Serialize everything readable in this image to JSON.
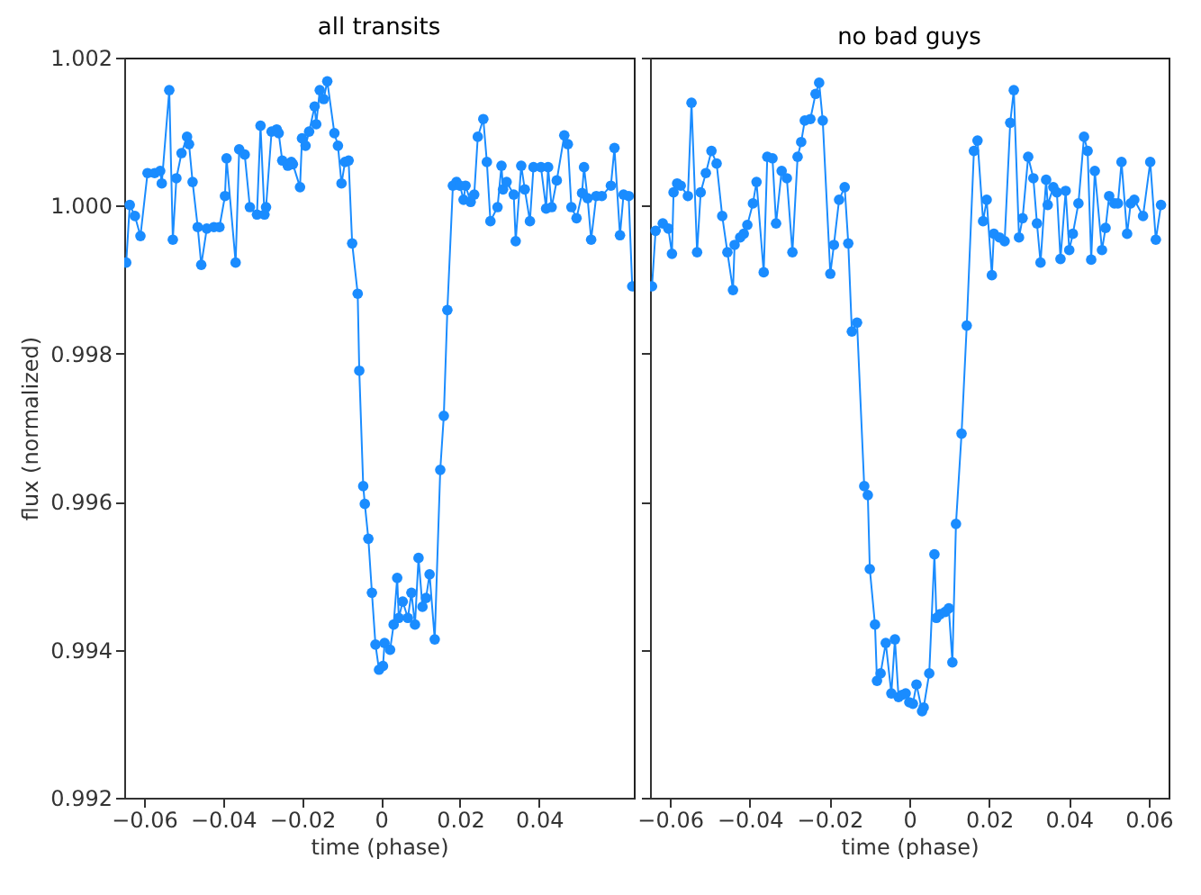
{
  "chart_data": [
    {
      "type": "line",
      "title": "all transits",
      "xlabel": "time (phase)",
      "ylabel": "flux (normalized)",
      "marker": "circle",
      "line_style": "solid",
      "grid": false,
      "xlim": [
        -0.065,
        0.064
      ],
      "xticks": [
        -0.06,
        -0.04,
        -0.02,
        0,
        0.02,
        0.04
      ],
      "ylim": [
        0.992,
        1.002
      ],
      "yticks": [
        0.992,
        0.994,
        0.996,
        0.998,
        {
          "value": 1,
          "label": "1.000"
        },
        1.002
      ],
      "series": [
        {
          "color": "#1a8cff",
          "x": [
            -0.0645,
            -0.0636,
            -0.0623,
            -0.0609,
            -0.0591,
            -0.0573,
            -0.0559,
            -0.0555,
            -0.0536,
            -0.0527,
            -0.0518,
            -0.0505,
            -0.0491,
            -0.0486,
            -0.0477,
            -0.0464,
            -0.0455,
            -0.0441,
            -0.0423,
            -0.0409,
            -0.0395,
            -0.0391,
            -0.0368,
            -0.0359,
            -0.0345,
            -0.0332,
            -0.0314,
            -0.0305,
            -0.0295,
            -0.0291,
            -0.0277,
            -0.0264,
            -0.0259,
            -0.025,
            -0.0236,
            -0.0227,
            -0.0223,
            -0.0205,
            -0.02,
            -0.0191,
            -0.0182,
            -0.0168,
            -0.0164,
            -0.0155,
            -0.0145,
            -0.0136,
            -0.0118,
            -0.0109,
            -0.01,
            -0.0091,
            -0.0082,
            -0.0073,
            -0.0059,
            -0.0055,
            -0.0045,
            -0.0041,
            -0.0032,
            -0.0023,
            -0.0014,
            -0.0005,
            0.0005,
            0.0009,
            0.0023,
            0.0032,
            0.0041,
            0.0045,
            0.0055,
            0.0068,
            0.0077,
            0.0086,
            0.0095,
            0.0105,
            0.0114,
            0.0123,
            0.0136,
            0.015,
            0.0159,
            0.0168,
            0.0182,
            0.0191,
            0.02,
            0.0209,
            0.0214,
            0.0227,
            0.0236,
            0.0245,
            0.0259,
            0.0268,
            0.0277,
            0.0295,
            0.0305,
            0.0309,
            0.0318,
            0.0336,
            0.0341,
            0.0355,
            0.0364,
            0.0377,
            0.0386,
            0.0405,
            0.0418,
            0.0423,
            0.0432,
            0.0445,
            0.0464,
            0.0473,
            0.0482,
            0.0495,
            0.0509,
            0.0514,
            0.0523,
            0.0532,
            0.0545,
            0.0559,
            0.0582,
            0.0591,
            0.0605,
            0.0614,
            0.0627,
            0.0636
          ],
          "values": [
            0.99923,
            1.00001,
            0.99986,
            0.99959,
            1.00044,
            1.00044,
            1.00047,
            1.0003,
            1.00156,
            0.99954,
            1.00037,
            1.00071,
            1.00093,
            1.00083,
            1.00032,
            0.99971,
            0.9992,
            0.99969,
            0.99971,
            0.99971,
            1.00013,
            1.00064,
            0.99923,
            1.00076,
            1.00069,
            0.99998,
            0.99988,
            1.00108,
            0.99988,
            0.99998,
            1.001,
            1.00103,
            1.00098,
            1.00061,
            1.00054,
            1.00059,
            1.00056,
            1.00025,
            1.00091,
            1.00081,
            1.001,
            1.00134,
            1.0011,
            1.00156,
            1.00144,
            1.00168,
            1.00098,
            1.00081,
            1.0003,
            1.00059,
            1.00061,
            0.99949,
            0.99881,
            0.99777,
            0.99621,
            0.99597,
            0.9955,
            0.99477,
            0.99407,
            0.99373,
            0.99378,
            0.99409,
            0.994,
            0.99434,
            0.99497,
            0.99443,
            0.99465,
            0.99443,
            0.99477,
            0.99434,
            0.99524,
            0.99458,
            0.9947,
            0.99502,
            0.99414,
            0.99643,
            0.99716,
            0.99859,
            1.00027,
            1.00032,
            1.00027,
            1.00008,
            1.00027,
            1.00005,
            1.00015,
            1.00093,
            1.00117,
            1.00059,
            0.99979,
            0.99998,
            1.00054,
            1.00022,
            1.00032,
            1.00015,
            0.99952,
            1.00054,
            1.00022,
            0.99979,
            1.00052,
            1.00052,
            0.99996,
            1.00052,
            0.99998,
            1.00034,
            1.00095,
            1.00083,
            0.99998,
            0.99983,
            1.00017,
            1.00052,
            1.0001,
            0.99954,
            1.00013,
            1.00013,
            1.00027,
            1.00078,
            0.9996,
            1.00015,
            1.00013,
            0.99891
          ]
        }
      ]
    },
    {
      "type": "line",
      "title": "no bad guys",
      "xlabel": "time (phase)",
      "marker": "circle",
      "line_style": "solid",
      "grid": false,
      "tick_labels": "x",
      "xlim": [
        -0.065,
        0.065
      ],
      "xticks": [
        -0.06,
        -0.04,
        -0.02,
        0,
        0.02,
        0.04,
        0.06
      ],
      "ylim": [
        0.992,
        1.002
      ],
      "yticks": [
        0.992,
        0.994,
        0.996,
        0.998,
        1,
        1.002
      ],
      "series": [
        {
          "color": "#1a8cff",
          "x": [
            -0.0645,
            -0.0636,
            -0.0618,
            -0.0604,
            -0.0595,
            -0.0591,
            -0.0582,
            -0.0573,
            -0.0555,
            -0.0546,
            -0.0532,
            -0.0523,
            -0.051,
            -0.0496,
            -0.0483,
            -0.0469,
            -0.0456,
            -0.0442,
            -0.0438,
            -0.0424,
            -0.0415,
            -0.0406,
            -0.0392,
            -0.0383,
            -0.0365,
            -0.0356,
            -0.0343,
            -0.0334,
            -0.032,
            -0.0307,
            -0.0293,
            -0.028,
            -0.0271,
            -0.0262,
            -0.0248,
            -0.0235,
            -0.0226,
            -0.0217,
            -0.0198,
            -0.0189,
            -0.0176,
            -0.0162,
            -0.0153,
            -0.0144,
            -0.0131,
            -0.0113,
            -0.0104,
            -0.0099,
            -0.0086,
            -0.0081,
            -0.0072,
            -0.0059,
            -0.0045,
            -0.0036,
            -0.0027,
            -0.0018,
            -0.0009,
            0,
            0.0009,
            0.0018,
            0.0032,
            0.0036,
            0.005,
            0.0063,
            0.0068,
            0.0077,
            0.009,
            0.0099,
            0.0108,
            0.0117,
            0.0131,
            0.0144,
            0.0162,
            0.0171,
            0.0185,
            0.0194,
            0.0207,
            0.0212,
            0.0226,
            0.0239,
            0.0253,
            0.0262,
            0.0275,
            0.0284,
            0.0298,
            0.0311,
            0.032,
            0.0329,
            0.0343,
            0.0347,
            0.0361,
            0.037,
            0.0379,
            0.0392,
            0.0401,
            0.041,
            0.0424,
            0.0438,
            0.0447,
            0.0456,
            0.0465,
            0.0483,
            0.0492,
            0.0501,
            0.0514,
            0.0523,
            0.0532,
            0.0546,
            0.0555,
            0.0564,
            0.0586,
            0.0604,
            0.0618,
            0.0631
          ],
          "values": [
            0.99891,
            0.99966,
            0.99976,
            0.99969,
            0.99935,
            1.00018,
            1.0003,
            1.00027,
            1.00013,
            1.00139,
            0.99937,
            1.00018,
            1.00044,
            1.00074,
            1.00057,
            0.99986,
            0.99937,
            0.99886,
            0.99947,
            0.99957,
            0.99962,
            0.99974,
            1.00003,
            1.00032,
            0.9991,
            1.00066,
            1.00064,
            0.99976,
            1.00047,
            1.00037,
            0.99937,
            1.00066,
            1.00086,
            1.00115,
            1.00117,
            1.00151,
            1.00166,
            1.00115,
            0.99908,
            0.99947,
            1.00008,
            1.00025,
            0.99949,
            0.9983,
            0.99842,
            0.99621,
            0.99609,
            0.99509,
            0.99434,
            0.99358,
            0.99368,
            0.99409,
            0.99341,
            0.99414,
            0.99336,
            0.99339,
            0.99341,
            0.99329,
            0.99327,
            0.99353,
            0.99317,
            0.99322,
            0.99368,
            0.99529,
            0.99443,
            0.99448,
            0.99451,
            0.99456,
            0.99383,
            0.9957,
            0.99692,
            0.99838,
            1.00074,
            1.00088,
            0.99979,
            1.00008,
            0.99906,
            0.99962,
            0.99957,
            0.99952,
            1.00112,
            1.00156,
            0.99957,
            0.99983,
            1.00066,
            1.00037,
            0.99976,
            0.99923,
            1.00035,
            1.00001,
            1.00025,
            1.00018,
            0.99928,
            1.0002,
            0.9994,
            0.99962,
            1.00003,
            1.00093,
            1.00074,
            0.99927,
            1.00047,
            0.9994,
            0.9997,
            1.00013,
            1.00003,
            1.00003,
            1.00059,
            0.99962,
            1.00003,
            1.00008,
            0.99986,
            1.00059,
            0.99954,
            1.00001
          ]
        }
      ]
    }
  ]
}
